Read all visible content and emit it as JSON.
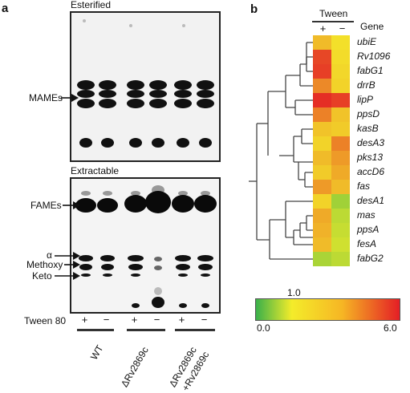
{
  "panel_a": {
    "letter": "a",
    "esterified_title": "Esterified",
    "extractable_title": "Extractable",
    "mames_label": "MAMEs",
    "fames_label": "FAMEs",
    "alpha_label": "α",
    "methoxy_label": "Methoxy",
    "keto_label": "Keto",
    "tween_row_label": "Tween 80",
    "lane_signs": [
      "+",
      "−",
      "+",
      "−",
      "+",
      "−"
    ],
    "group_labels": [
      "WT",
      "ΔRv2869c",
      "ΔRv2869c",
      "+Rv2869c"
    ]
  },
  "panel_b": {
    "letter": "b",
    "tween_header": "Tween",
    "gene_header": "Gene",
    "column_signs": [
      "+",
      "−"
    ],
    "genes": [
      "ubiE",
      "Rv1096",
      "fabG1",
      "drrB",
      "lipP",
      "ppsD",
      "kasB",
      "desA3",
      "pks13",
      "accD6",
      "fas",
      "desA1",
      "mas",
      "ppsA",
      "fesA",
      "fabG2"
    ],
    "heatmap_fold_change": [
      [
        2.2,
        1.3
      ],
      [
        5.0,
        1.4
      ],
      [
        5.2,
        1.5
      ],
      [
        3.4,
        1.6
      ],
      [
        5.6,
        5.2
      ],
      [
        3.6,
        2.0
      ],
      [
        2.0,
        1.8
      ],
      [
        1.6,
        3.6
      ],
      [
        2.2,
        3.0
      ],
      [
        1.8,
        2.6
      ],
      [
        3.0,
        2.2
      ],
      [
        1.6,
        0.55
      ],
      [
        2.6,
        0.7
      ],
      [
        2.4,
        0.75
      ],
      [
        2.2,
        0.8
      ],
      [
        0.6,
        0.7
      ]
    ],
    "colorbar": {
      "min_label": "0.0",
      "mid_label": "1.0",
      "max_label": "6.0",
      "colors": [
        "#3ab04a",
        "#f4ec2a",
        "#e41e25"
      ]
    }
  }
}
